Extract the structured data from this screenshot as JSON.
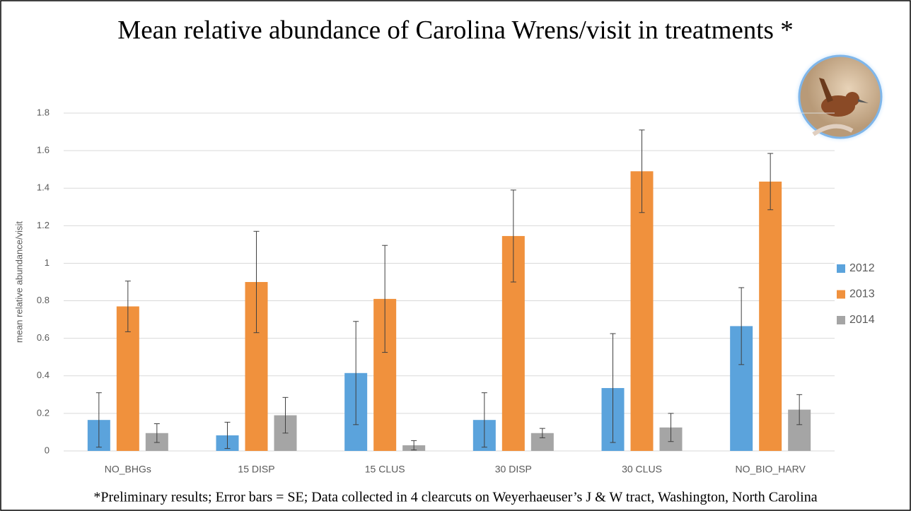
{
  "chart_data": {
    "type": "bar",
    "title": "Mean relative abundance of Carolina Wrens/visit in treatments *",
    "y_label": "mean relative abundance/visit",
    "footnote": "*Preliminary results; Error bars = SE; Data collected in 4 clearcuts on Weyerhaeuser’s J & W tract, Washington, North Carolina",
    "categories": [
      "NO_BHGs",
      "15 DISP",
      "15 CLUS",
      "30 DISP",
      "30 CLUS",
      "NO_BIO_HARV"
    ],
    "series": [
      {
        "name": "2012",
        "color": "#5ba3dc",
        "values": [
          0.165,
          0.083,
          0.415,
          0.165,
          0.335,
          0.665
        ],
        "errors": [
          0.145,
          0.07,
          0.275,
          0.145,
          0.29,
          0.205
        ]
      },
      {
        "name": "2013",
        "color": "#f0913d",
        "values": [
          0.77,
          0.9,
          0.81,
          1.145,
          1.49,
          1.435
        ],
        "errors": [
          0.135,
          0.27,
          0.285,
          0.245,
          0.22,
          0.15
        ]
      },
      {
        "name": "2014",
        "color": "#a5a5a5",
        "values": [
          0.095,
          0.19,
          0.03,
          0.095,
          0.125,
          0.22
        ],
        "errors": [
          0.05,
          0.095,
          0.025,
          0.025,
          0.075,
          0.08
        ]
      }
    ],
    "ylim": [
      0,
      1.8
    ],
    "yticks": [
      0,
      0.2,
      0.4,
      0.6,
      0.8,
      1,
      1.2,
      1.4,
      1.6,
      1.8
    ],
    "grid": true,
    "legend": "right"
  }
}
